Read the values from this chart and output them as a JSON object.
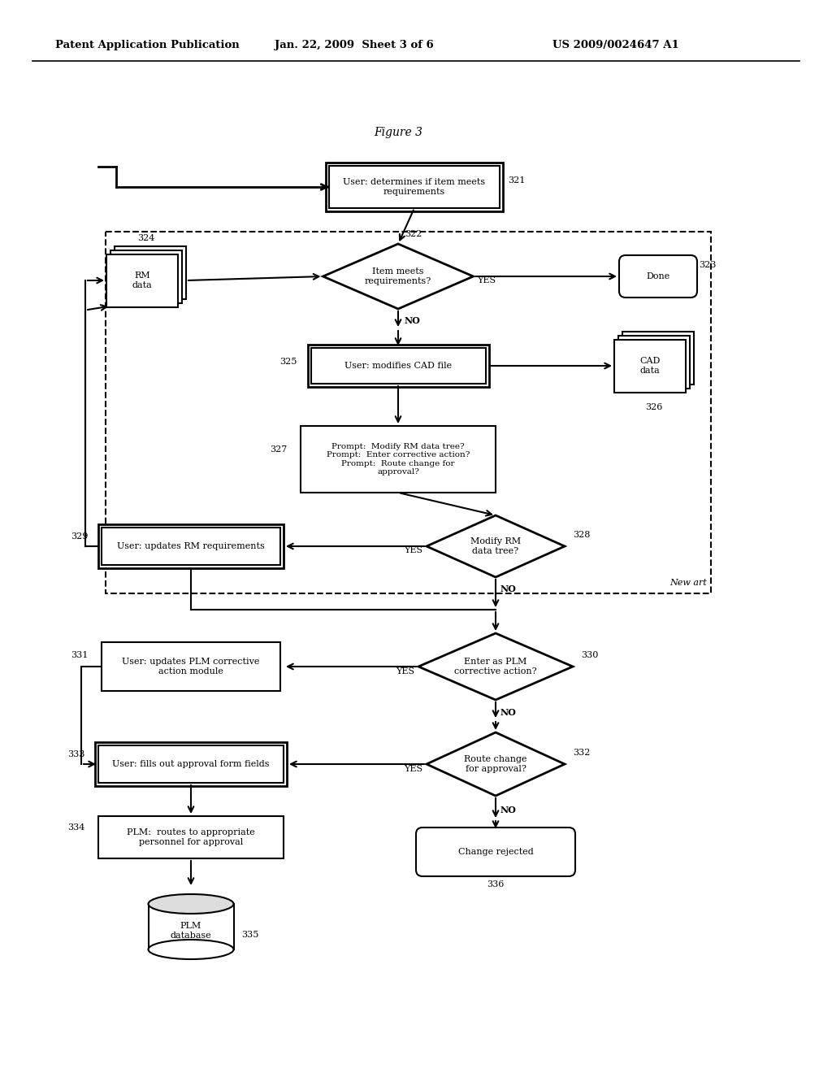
{
  "header_left": "Patent Application Publication",
  "header_mid": "Jan. 22, 2009  Sheet 3 of 6",
  "header_right": "US 2009/0024647 A1",
  "figure_title": "Figure 3",
  "bg": "#ffffff",
  "n321": "User: determines if item meets\nrequirements",
  "n322": "Item meets\nrequirements?",
  "n323": "Done",
  "n324": "RM\ndata",
  "n325": "User: modifies CAD file",
  "n326": "CAD\ndata",
  "n327": "Prompt:  Modify RM data tree?\nPrompt:  Enter corrective action?\nPrompt:  Route change for\napproval?",
  "n328": "Modify RM\ndata tree?",
  "n329": "User: updates RM requirements",
  "n330": "Enter as PLM\ncorrective action?",
  "n331": "User: updates PLM corrective\naction module",
  "n332": "Route change\nfor approval?",
  "n333": "User: fills out approval form fields",
  "n334": "PLM:  routes to appropriate\npersonnel for approval",
  "n335": "PLM\ndatabase",
  "n336": "Change rejected",
  "new_art": "New art"
}
